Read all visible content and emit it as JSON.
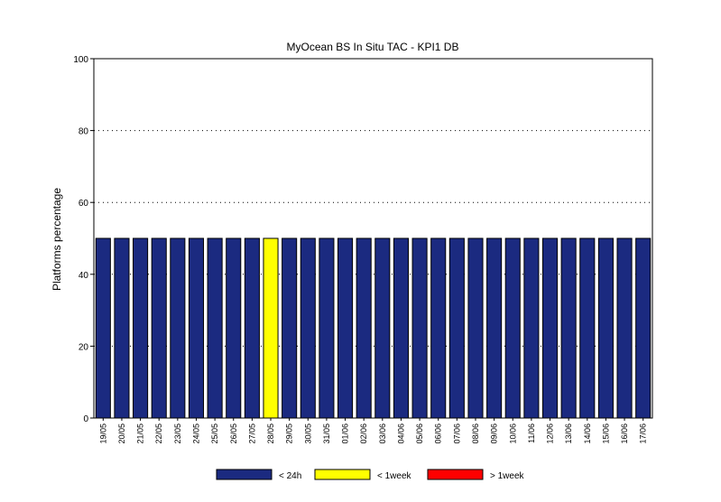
{
  "chart_data": {
    "type": "bar",
    "title": "MyOcean  BS In Situ TAC - KPI1  DB",
    "xlabel": "",
    "ylabel": "Platforms percentage",
    "ylim": [
      0,
      100
    ],
    "yticks": [
      0,
      20,
      40,
      60,
      80,
      100
    ],
    "grid": "horizontal dotted",
    "legend_position": "bottom",
    "categories": [
      "19/05",
      "20/05",
      "21/05",
      "22/05",
      "23/05",
      "24/05",
      "25/05",
      "26/05",
      "27/05",
      "28/05",
      "29/05",
      "30/05",
      "31/05",
      "01/06",
      "02/06",
      "03/06",
      "04/06",
      "05/06",
      "06/06",
      "07/06",
      "08/06",
      "09/06",
      "10/06",
      "11/06",
      "12/06",
      "13/06",
      "14/06",
      "15/06",
      "16/06",
      "17/06"
    ],
    "series": [
      {
        "name": "< 24h",
        "color": "#1b2a80",
        "values": [
          50,
          50,
          50,
          50,
          50,
          50,
          50,
          50,
          50,
          0,
          50,
          50,
          50,
          50,
          50,
          50,
          50,
          50,
          50,
          50,
          50,
          50,
          50,
          50,
          50,
          50,
          50,
          50,
          50,
          50
        ]
      },
      {
        "name": "< 1week",
        "color": "#ffff00",
        "values": [
          0,
          0,
          0,
          0,
          0,
          0,
          0,
          0,
          0,
          50,
          0,
          0,
          0,
          0,
          0,
          0,
          0,
          0,
          0,
          0,
          0,
          0,
          0,
          0,
          0,
          0,
          0,
          0,
          0,
          0
        ]
      },
      {
        "name": "> 1week",
        "color": "#ff0000",
        "values": [
          0,
          0,
          0,
          0,
          0,
          0,
          0,
          0,
          0,
          0,
          0,
          0,
          0,
          0,
          0,
          0,
          0,
          0,
          0,
          0,
          0,
          0,
          0,
          0,
          0,
          0,
          0,
          0,
          0,
          0
        ]
      }
    ]
  }
}
